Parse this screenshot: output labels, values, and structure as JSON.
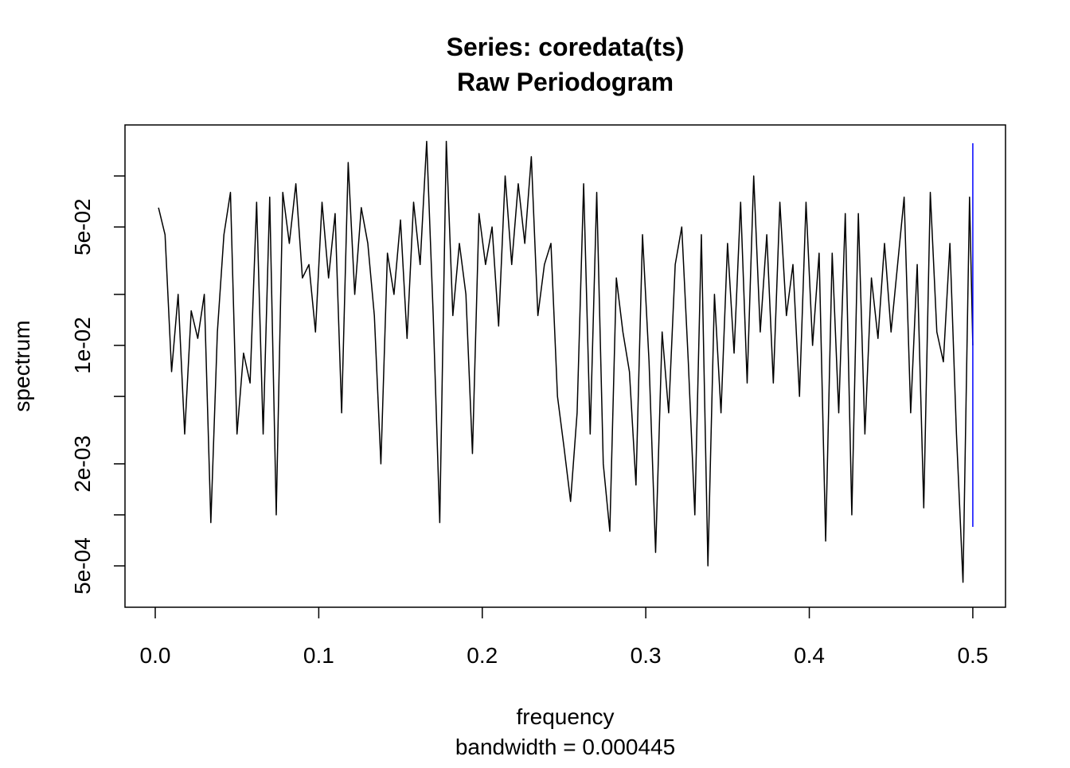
{
  "chart_data": {
    "type": "line",
    "title": "Series: coredata(ts)",
    "subtitle": "Raw Periodogram",
    "xlabel": "frequency",
    "xlabel_sub": "bandwidth = 0.000445",
    "ylabel": "spectrum",
    "log_y": true,
    "xlim": [
      -0.0185,
      0.52
    ],
    "ylim": [
      0.000285,
      0.2
    ],
    "xticks": [
      {
        "value": 0,
        "label": "0.0"
      },
      0.1,
      0.2,
      0.3,
      0.4,
      0.5
    ],
    "yticks": [
      {
        "value": 0.1,
        "label": null
      },
      {
        "value": 0.05,
        "label": "5e-02"
      },
      {
        "value": 0.02,
        "label": null
      },
      {
        "value": 0.01,
        "label": "1e-02"
      },
      {
        "value": 0.005,
        "label": null
      },
      {
        "value": 0.002,
        "label": "2e-03"
      },
      {
        "value": 0.001,
        "label": null
      },
      {
        "value": 0.0005,
        "label": "5e-04"
      }
    ],
    "series": [
      {
        "color": "#000000",
        "x": [
          0.002,
          0.006,
          0.01,
          0.014,
          0.018,
          0.022,
          0.026,
          0.03,
          0.034,
          0.038,
          0.042,
          0.046,
          0.05,
          0.054,
          0.058,
          0.062,
          0.066,
          0.07,
          0.074,
          0.078,
          0.082,
          0.086,
          0.09,
          0.094,
          0.098,
          0.102,
          0.106,
          0.11,
          0.114,
          0.118,
          0.122,
          0.126,
          0.13,
          0.134,
          0.138,
          0.142,
          0.146,
          0.15,
          0.154,
          0.158,
          0.162,
          0.166,
          0.17,
          0.174,
          0.178,
          0.182,
          0.186,
          0.19,
          0.194,
          0.198,
          0.202,
          0.206,
          0.21,
          0.214,
          0.218,
          0.222,
          0.226,
          0.23,
          0.234,
          0.238,
          0.242,
          0.246,
          0.25,
          0.254,
          0.258,
          0.262,
          0.266,
          0.27,
          0.274,
          0.278,
          0.282,
          0.286,
          0.29,
          0.294,
          0.298,
          0.302,
          0.306,
          0.31,
          0.314,
          0.318,
          0.322,
          0.326,
          0.33,
          0.334,
          0.338,
          0.342,
          0.346,
          0.35,
          0.354,
          0.358,
          0.362,
          0.366,
          0.37,
          0.374,
          0.378,
          0.382,
          0.386,
          0.39,
          0.394,
          0.398,
          0.402,
          0.406,
          0.41,
          0.414,
          0.418,
          0.422,
          0.426,
          0.43,
          0.434,
          0.438,
          0.442,
          0.446,
          0.45,
          0.454,
          0.458,
          0.462,
          0.466,
          0.47,
          0.474,
          0.478,
          0.482,
          0.486,
          0.49,
          0.494,
          0.498,
          0.5
        ],
        "values": [
          0.065,
          0.045,
          0.007,
          0.02,
          0.003,
          0.016,
          0.011,
          0.02,
          0.0009,
          0.012,
          0.045,
          0.08,
          0.003,
          0.009,
          0.006,
          0.07,
          0.003,
          0.075,
          0.001,
          0.08,
          0.04,
          0.09,
          0.025,
          0.03,
          0.012,
          0.07,
          0.025,
          0.06,
          0.004,
          0.12,
          0.02,
          0.065,
          0.04,
          0.015,
          0.002,
          0.035,
          0.02,
          0.055,
          0.011,
          0.07,
          0.03,
          0.16,
          0.015,
          0.0009,
          0.16,
          0.015,
          0.04,
          0.02,
          0.0023,
          0.06,
          0.03,
          0.05,
          0.013,
          0.1,
          0.03,
          0.09,
          0.04,
          0.13,
          0.015,
          0.03,
          0.04,
          0.005,
          0.0025,
          0.0012,
          0.004,
          0.09,
          0.003,
          0.08,
          0.002,
          0.0008,
          0.025,
          0.012,
          0.007,
          0.0015,
          0.045,
          0.008,
          0.0006,
          0.012,
          0.004,
          0.03,
          0.05,
          0.008,
          0.001,
          0.045,
          0.0005,
          0.02,
          0.004,
          0.04,
          0.009,
          0.07,
          0.006,
          0.1,
          0.012,
          0.045,
          0.006,
          0.07,
          0.015,
          0.03,
          0.005,
          0.07,
          0.01,
          0.035,
          0.0007,
          0.035,
          0.004,
          0.06,
          0.001,
          0.06,
          0.003,
          0.025,
          0.011,
          0.04,
          0.012,
          0.03,
          0.075,
          0.004,
          0.03,
          0.0011,
          0.08,
          0.012,
          0.008,
          0.04,
          0.003,
          0.0004,
          0.075,
          0.01
        ]
      }
    ],
    "ci": {
      "x": 0.5,
      "range": [
        0.00085,
        0.156
      ],
      "color": "#0000ff"
    }
  }
}
